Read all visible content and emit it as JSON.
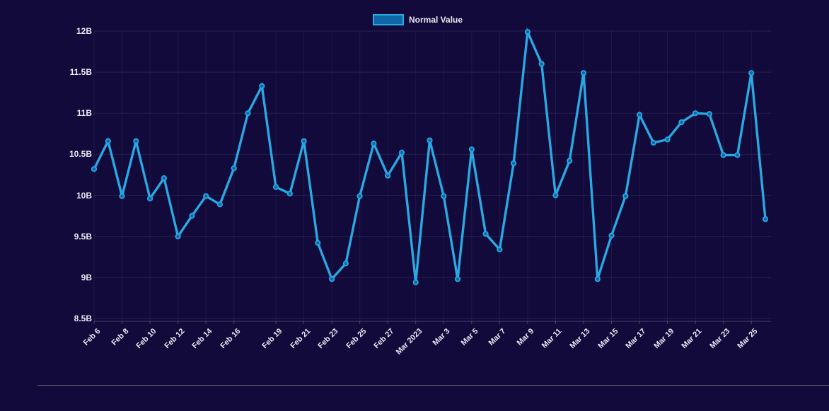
{
  "colors": {
    "background": "#120a3a",
    "line": "#29a8e2",
    "marker_fill": "#0f68a9",
    "legend_fill": "#0e67a7",
    "text": "#e9e9f2",
    "grid_h": "rgba(180,170,220,0.14)",
    "grid_v": "rgba(180,170,220,0.09)",
    "axis": "rgba(190,190,215,0.30)",
    "divider": "#6a6a78"
  },
  "legend": {
    "label": "Normal Value"
  },
  "chart_data": {
    "type": "line",
    "title": "",
    "xlabel": "",
    "ylabel": "",
    "ylim": [
      8.5,
      12
    ],
    "yticks": [
      8.5,
      9,
      9.5,
      10,
      10.5,
      11,
      11.5,
      12
    ],
    "ytick_suffix": "B",
    "grid": true,
    "legend_position": "top-center",
    "x": [
      "Feb 6",
      "Feb 7",
      "Feb 8",
      "Feb 9",
      "Feb 10",
      "Feb 11",
      "Feb 12",
      "Feb 13",
      "Feb 14",
      "Feb 15",
      "Feb 16",
      "Feb 17",
      "Feb 18",
      "Feb 19",
      "Feb 20",
      "Feb 21",
      "Feb 22",
      "Feb 23",
      "Feb 24",
      "Feb 25",
      "Feb 26",
      "Feb 27",
      "Feb 28",
      "Mar 1",
      "Mar 2",
      "Mar 3",
      "Mar 4",
      "Mar 5",
      "Mar 6",
      "Mar 7",
      "Mar 8",
      "Mar 9",
      "Mar 10",
      "Mar 11",
      "Mar 12",
      "Mar 13",
      "Mar 14",
      "Mar 15",
      "Mar 16",
      "Mar 17",
      "Mar 18",
      "Mar 19",
      "Mar 20",
      "Mar 21",
      "Mar 22",
      "Mar 23",
      "Mar 24",
      "Mar 25",
      "Mar 26"
    ],
    "x_tick_indices": [
      0,
      2,
      4,
      6,
      8,
      10,
      13,
      15,
      17,
      19,
      21,
      23,
      25,
      27,
      29,
      31,
      33,
      35,
      37,
      39,
      41,
      43,
      45,
      47
    ],
    "x_tick_labels": [
      "Feb 6",
      "Feb 8",
      "Feb 10",
      "Feb 12",
      "Feb 14",
      "Feb 16",
      "Feb 19",
      "Feb 21",
      "Feb 23",
      "Feb 25",
      "Feb 27",
      "Mar 2023",
      "Mar 3",
      "Mar 5",
      "Mar 7",
      "Mar 9",
      "Mar 11",
      "Mar 13",
      "Mar 15",
      "Mar 17",
      "Mar 19",
      "Mar 21",
      "Mar 23",
      "Mar 25"
    ],
    "series": [
      {
        "name": "Normal Value",
        "values": [
          10.32,
          10.66,
          9.99,
          10.66,
          9.96,
          10.21,
          9.5,
          9.75,
          9.99,
          9.89,
          10.33,
          11.0,
          11.33,
          10.1,
          10.02,
          10.66,
          9.42,
          8.98,
          9.17,
          9.99,
          10.63,
          10.24,
          10.52,
          8.94,
          10.67,
          9.99,
          8.98,
          10.56,
          9.53,
          9.34,
          10.39,
          11.99,
          11.6,
          10.0,
          10.42,
          11.49,
          8.98,
          9.51,
          9.99,
          10.98,
          10.64,
          10.68,
          10.89,
          11.0,
          10.99,
          10.49,
          10.49,
          11.49,
          9.71
        ]
      }
    ]
  }
}
